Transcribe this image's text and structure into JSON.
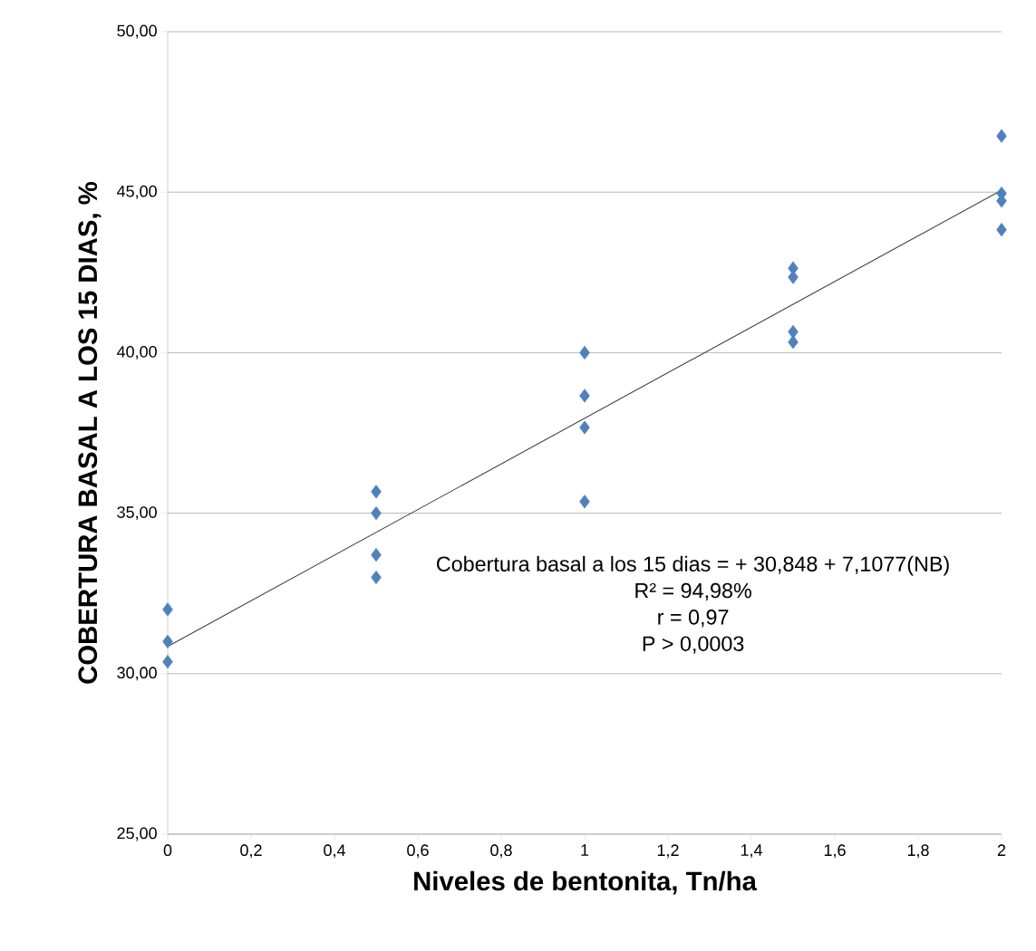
{
  "chart_data": {
    "type": "scatter",
    "xlabel": "Niveles de bentonita, Tn/ha",
    "ylabel": "COBERTURA BASAL A LOS 15 DIAS,  %",
    "series": [
      {
        "color": "#4f81bd",
        "marker": "diamond",
        "x": [
          0,
          0,
          0,
          0.5,
          0.5,
          0.5,
          0.5,
          1,
          1,
          1,
          1,
          1.5,
          1.5,
          1.5,
          1.5,
          2,
          2,
          2,
          2
        ],
        "values": [
          32.0,
          31.0,
          30.37,
          35.67,
          35.0,
          33.7,
          33.0,
          40.0,
          38.66,
          37.67,
          35.36,
          42.63,
          42.35,
          40.65,
          40.33,
          46.75,
          44.96,
          44.73,
          43.83
        ]
      },
      {
        "type": "line",
        "color": "#404040",
        "marker": "none",
        "line_style": "solid",
        "x": [
          0,
          2
        ],
        "values": [
          30.85,
          45.06
        ]
      }
    ],
    "xlim": [
      0,
      2
    ],
    "xticks": [
      0,
      {
        "value": 0.2,
        "label": "0,2"
      },
      {
        "value": 0.4,
        "label": "0,4"
      },
      {
        "value": 0.6,
        "label": "0,6"
      },
      {
        "value": 0.8,
        "label": "0,8"
      },
      1,
      {
        "value": 1.2,
        "label": "1,2"
      },
      {
        "value": 1.4,
        "label": "1,4"
      },
      {
        "value": 1.6,
        "label": "1,6"
      },
      {
        "value": 1.8,
        "label": "1,8"
      },
      2
    ],
    "ylim": [
      25,
      50
    ],
    "yticks": [
      {
        "value": 25,
        "label": "25,00"
      },
      {
        "value": 30,
        "label": "30,00"
      },
      {
        "value": 35,
        "label": "35,00"
      },
      {
        "value": 40,
        "label": "40,00"
      },
      {
        "value": 45,
        "label": "45,00"
      },
      {
        "value": 50,
        "label": "50,00"
      }
    ],
    "grid": "y",
    "annotations": [
      "Cobertura basal a los 15 dias  = + 30,848 + 7,1077(NB)",
      "R² = 94,98%",
      "r = 0,97",
      "P > 0,0003"
    ]
  }
}
